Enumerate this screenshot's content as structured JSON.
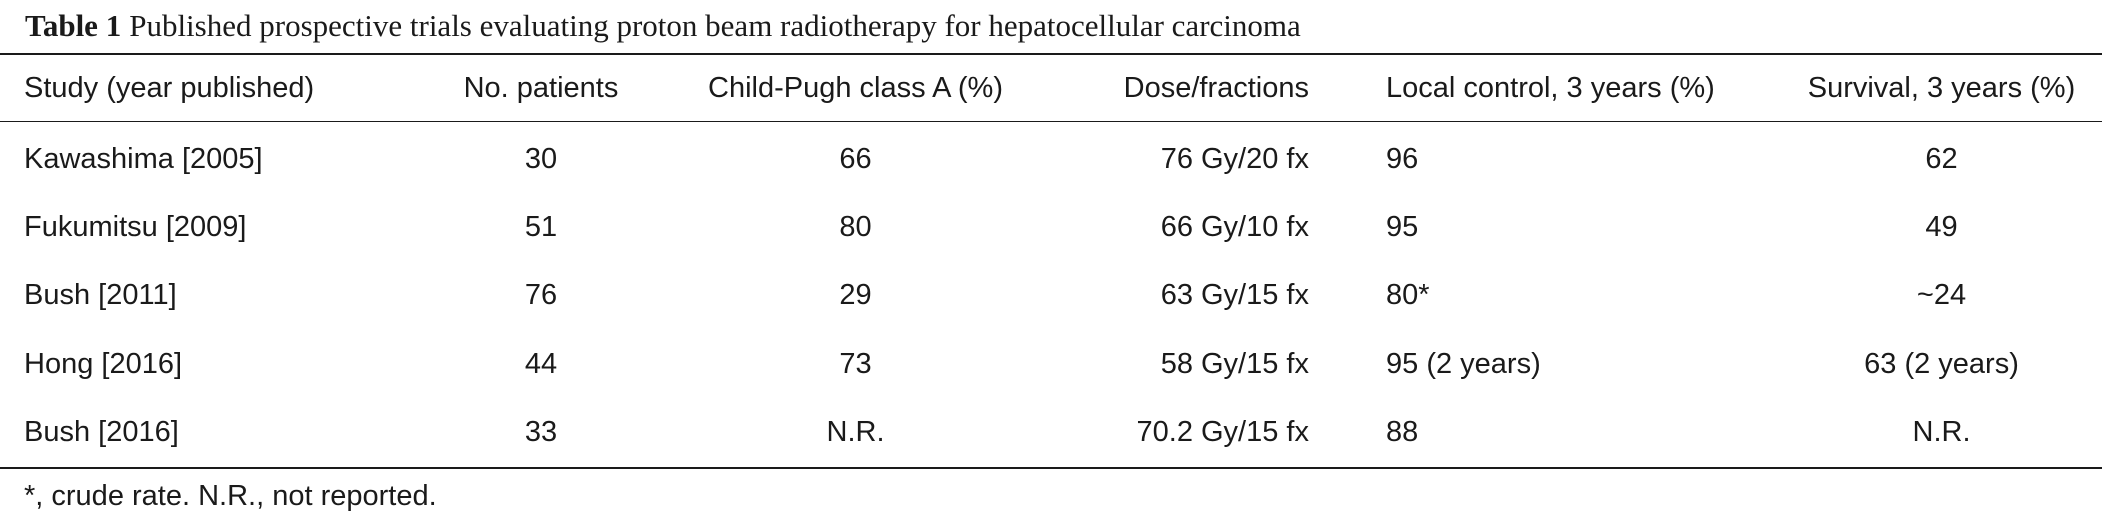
{
  "title": {
    "label": "Table 1",
    "text": "Published prospective trials evaluating proton beam radiotherapy for hepatocellular carcinoma"
  },
  "columns": [
    "Study (year published)",
    "No. patients",
    "Child-Pugh class A (%)",
    "Dose/fractions",
    "Local control, 3 years (%)",
    "Survival, 3 years (%)"
  ],
  "rows": [
    [
      "Kawashima [2005]",
      "30",
      "66",
      "76 Gy/20 fx",
      "96",
      "62"
    ],
    [
      "Fukumitsu [2009]",
      "51",
      "80",
      "66 Gy/10 fx",
      "95",
      "49"
    ],
    [
      "Bush [2011]",
      "76",
      "29",
      "63 Gy/15 fx",
      "80*",
      "~24"
    ],
    [
      "Hong [2016]",
      "44",
      "73",
      "58 Gy/15 fx",
      "95 (2 years)",
      "63 (2 years)"
    ],
    [
      "Bush [2016]",
      "33",
      "N.R.",
      "70.2 Gy/15 fx",
      "88",
      "N.R."
    ]
  ],
  "footnote": "*, crude rate. N.R., not reported."
}
